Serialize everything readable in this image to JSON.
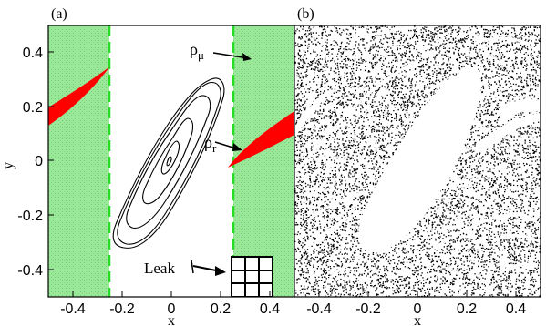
{
  "panels": [
    {
      "label": "(a)",
      "xlabel": "x",
      "ylabel": "y",
      "xticks": [
        "-0.4",
        "-0.2",
        "0",
        "0.2",
        "0.4"
      ],
      "yticks": [
        "0.4",
        "0.2",
        "0",
        "-0.2",
        "-0.4"
      ],
      "annotations": {
        "rho_mu": {
          "base": "ρ",
          "sub": "μ"
        },
        "rho_r": {
          "base": "ρ",
          "sub": "r"
        },
        "leak": "Leak"
      }
    },
    {
      "label": "(b)",
      "xlabel": "x",
      "xticks": [
        "-0.4",
        "-0.2",
        "0",
        "0.2",
        "0.4"
      ]
    }
  ],
  "colors": {
    "leak_region": "#9be89b",
    "leak_border": "#22dd22",
    "density_patch": "#ff0000",
    "chaotic_points": "#000000"
  },
  "chart_data": [
    {
      "type": "scatter",
      "panel": "(a)",
      "xlabel": "x",
      "ylabel": "y",
      "xlim": [
        -0.5,
        0.5
      ],
      "ylim": [
        -0.5,
        0.5
      ],
      "leak_strips": [
        [
          -0.5,
          -0.25
        ],
        [
          0.25,
          0.5
        ]
      ],
      "invariant_curves": "nested closed orbits centered at (0, 0.02)",
      "grid_box": {
        "x": [
          0.25,
          0.4
        ],
        "y": [
          -0.5,
          -0.35
        ],
        "cells": 3
      }
    },
    {
      "type": "scatter",
      "panel": "(b)",
      "xlabel": "x",
      "xlim": [
        -0.5,
        0.5
      ],
      "ylim": [
        -0.5,
        0.5
      ],
      "stable_island_center": [
        0,
        0
      ]
    }
  ]
}
